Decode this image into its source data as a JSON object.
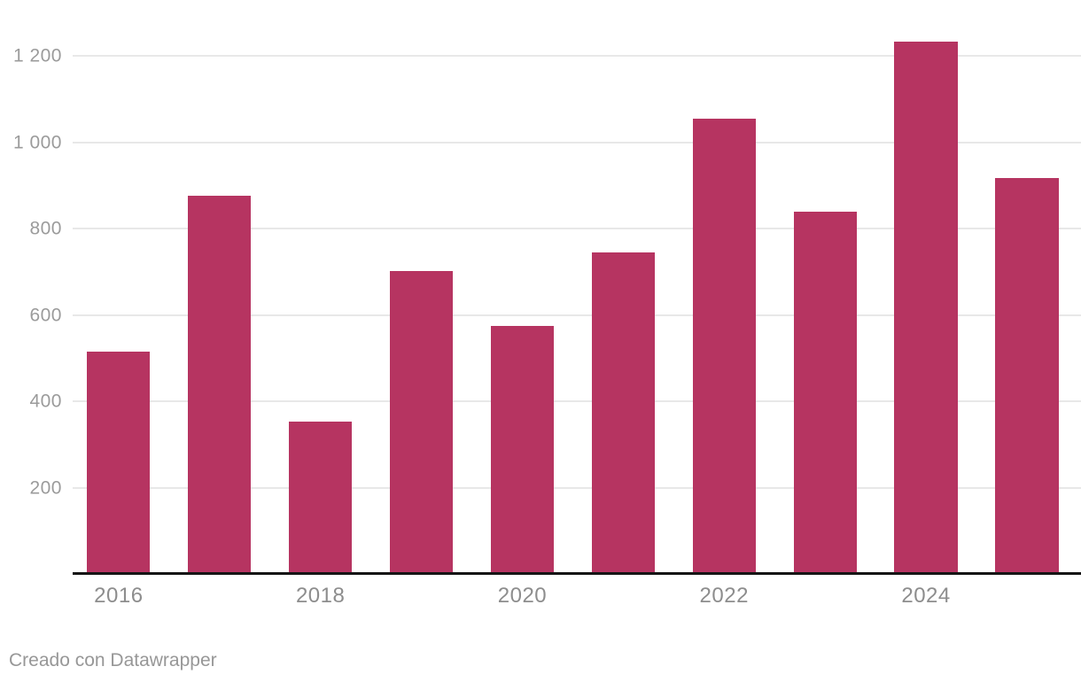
{
  "chart_data": {
    "type": "bar",
    "categories": [
      "2016",
      "2017",
      "2018",
      "2019",
      "2020",
      "2021",
      "2022",
      "2023",
      "2024",
      "2025"
    ],
    "values": [
      515,
      877,
      353,
      703,
      575,
      745,
      1055,
      840,
      1234,
      918
    ],
    "xlabel": "",
    "ylabel": "",
    "ylim": [
      0,
      1330
    ],
    "y_ticks": [
      {
        "value": 200,
        "label": "200"
      },
      {
        "value": 400,
        "label": "400"
      },
      {
        "value": 600,
        "label": "600"
      },
      {
        "value": 800,
        "label": "800"
      },
      {
        "value": 1000,
        "label": "1 000"
      },
      {
        "value": 1200,
        "label": "1 200"
      }
    ],
    "x_ticks": [
      {
        "index": 0,
        "label": "2016"
      },
      {
        "index": 2,
        "label": "2018"
      },
      {
        "index": 4,
        "label": "2020"
      },
      {
        "index": 6,
        "label": "2022"
      },
      {
        "index": 8,
        "label": "2024"
      }
    ],
    "grid": "horizontal",
    "legend_position": "none",
    "colors": {
      "bar": "#b63461",
      "grid": "#e8e8e8",
      "axis": "#151515",
      "y_tick_label": "#9b9b9b",
      "x_tick_label": "#8d8d8d",
      "credit_text": "#979797"
    }
  },
  "footer": {
    "credit": "Creado con Datawrapper"
  }
}
